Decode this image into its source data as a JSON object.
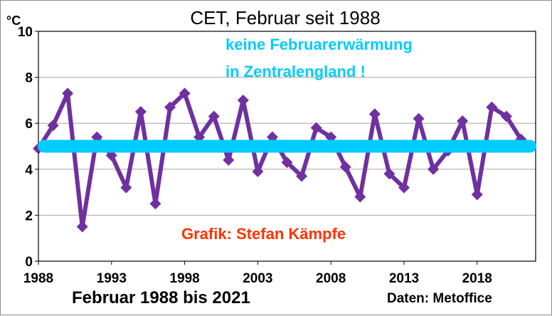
{
  "chart_data": {
    "type": "line",
    "title": "CET, Februar seit 1988",
    "unit_label": "°C",
    "xlabel": "Februar 1988 bis 2021",
    "source": "Daten: Metoffice",
    "credit": "Grafik: Stefan Kämpfe",
    "annotation_lines": [
      "keine Februarerwärmung",
      "in Zentralengland !"
    ],
    "xlim": [
      1988,
      2022
    ],
    "ylim": [
      0,
      10
    ],
    "x_ticks": [
      1988,
      1993,
      1998,
      2003,
      2008,
      2013,
      2018
    ],
    "y_ticks": [
      0,
      2,
      4,
      6,
      8,
      10
    ],
    "grid": true,
    "series": [
      {
        "x": [
          1988,
          1989,
          1990,
          1991,
          1992,
          1993,
          1994,
          1995,
          1996,
          1997,
          1998,
          1999,
          2000,
          2001,
          2002,
          2003,
          2004,
          2005,
          2006,
          2007,
          2008,
          2009,
          2010,
          2011,
          2012,
          2013,
          2014,
          2015,
          2016,
          2017,
          2018,
          2019,
          2020,
          2021
        ],
        "values": [
          4.9,
          5.9,
          7.3,
          1.5,
          5.4,
          4.6,
          3.2,
          6.5,
          2.5,
          6.7,
          7.3,
          5.4,
          6.3,
          4.4,
          7.0,
          3.9,
          5.4,
          4.3,
          3.7,
          5.8,
          5.4,
          4.1,
          2.8,
          6.4,
          3.8,
          3.2,
          6.2,
          4.0,
          4.8,
          6.1,
          2.9,
          6.7,
          6.3,
          5.3
        ],
        "color": "#7030a0"
      }
    ],
    "trend": {
      "x": [
        1988,
        2022
      ],
      "values": [
        5.0,
        5.0
      ],
      "color": "#00ccff"
    },
    "colors": {
      "annotation": "#00ccff",
      "credit": "#ff3300",
      "grid": "#a6a6a6"
    }
  }
}
